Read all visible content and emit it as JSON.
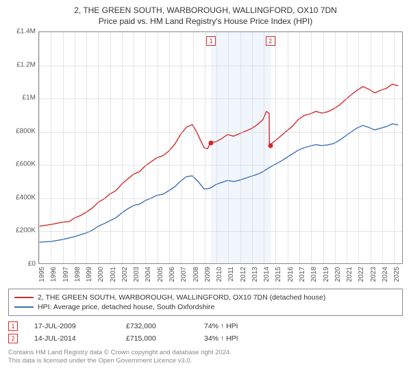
{
  "title_line1": "2, THE GREEN SOUTH, WARBOROUGH, WALLINGFORD, OX10 7DN",
  "title_line2": "Price paid vs. HM Land Registry's House Price Index (HPI)",
  "chart": {
    "type": "line",
    "background_color": "#ffffff",
    "grid_color": "#cccccc",
    "axis_color": "#888888",
    "ylim": [
      0,
      1400000
    ],
    "ytick_step": 200000,
    "yticks": [
      "£0",
      "£200K",
      "£400K",
      "£600K",
      "£800K",
      "£1M",
      "£1.2M",
      "£1.4M"
    ],
    "x_start_year": 1995,
    "x_end_year": 2025.8,
    "xticks": [
      1995,
      1996,
      1997,
      1998,
      1999,
      2000,
      2001,
      2002,
      2003,
      2004,
      2005,
      2006,
      2007,
      2008,
      2009,
      2010,
      2011,
      2012,
      2013,
      2014,
      2015,
      2016,
      2017,
      2018,
      2019,
      2020,
      2021,
      2022,
      2023,
      2024,
      2025
    ],
    "shade_band": {
      "start": 2009.55,
      "end": 2014.55,
      "color": "#e8f0fa"
    },
    "series": [
      {
        "name": "price_paid",
        "color": "#d62728",
        "line_width": 1.4,
        "points": [
          [
            1995,
            225000
          ],
          [
            1996,
            235000
          ],
          [
            1997,
            250000
          ],
          [
            1997.5,
            252000
          ],
          [
            1998,
            275000
          ],
          [
            1998.5,
            290000
          ],
          [
            1999,
            310000
          ],
          [
            1999.5,
            335000
          ],
          [
            2000,
            370000
          ],
          [
            2000.5,
            390000
          ],
          [
            2001,
            420000
          ],
          [
            2001.5,
            440000
          ],
          [
            2002,
            480000
          ],
          [
            2002.5,
            510000
          ],
          [
            2003,
            540000
          ],
          [
            2003.5,
            555000
          ],
          [
            2004,
            590000
          ],
          [
            2004.5,
            615000
          ],
          [
            2005,
            640000
          ],
          [
            2005.5,
            652000
          ],
          [
            2006,
            680000
          ],
          [
            2006.5,
            720000
          ],
          [
            2007,
            780000
          ],
          [
            2007.5,
            825000
          ],
          [
            2008,
            840000
          ],
          [
            2008.3,
            805000
          ],
          [
            2008.6,
            760000
          ],
          [
            2009,
            700000
          ],
          [
            2009.3,
            694000
          ],
          [
            2009.55,
            732000
          ],
          [
            2010,
            736000
          ],
          [
            2010.5,
            755000
          ],
          [
            2011,
            780000
          ],
          [
            2011.5,
            770000
          ],
          [
            2012,
            785000
          ],
          [
            2012.5,
            800000
          ],
          [
            2013,
            815000
          ],
          [
            2013.5,
            838000
          ],
          [
            2014,
            870000
          ],
          [
            2014.3,
            920000
          ],
          [
            2014.53,
            908000
          ],
          [
            2014.55,
            715000
          ],
          [
            2015,
            740000
          ],
          [
            2015.5,
            770000
          ],
          [
            2016,
            800000
          ],
          [
            2016.5,
            830000
          ],
          [
            2017,
            870000
          ],
          [
            2017.5,
            895000
          ],
          [
            2018,
            905000
          ],
          [
            2018.5,
            920000
          ],
          [
            2019,
            910000
          ],
          [
            2019.5,
            918000
          ],
          [
            2020,
            935000
          ],
          [
            2020.5,
            958000
          ],
          [
            2021,
            990000
          ],
          [
            2021.5,
            1020000
          ],
          [
            2022,
            1048000
          ],
          [
            2022.5,
            1070000
          ],
          [
            2023,
            1055000
          ],
          [
            2023.5,
            1032000
          ],
          [
            2024,
            1048000
          ],
          [
            2024.5,
            1060000
          ],
          [
            2025,
            1085000
          ],
          [
            2025.5,
            1075000
          ]
        ]
      },
      {
        "name": "hpi",
        "color": "#3b6fb6",
        "line_width": 1.4,
        "points": [
          [
            1995,
            128000
          ],
          [
            1996,
            132000
          ],
          [
            1997,
            145000
          ],
          [
            1998,
            162000
          ],
          [
            1999,
            185000
          ],
          [
            1999.5,
            200000
          ],
          [
            2000,
            225000
          ],
          [
            2000.5,
            240000
          ],
          [
            2001,
            258000
          ],
          [
            2001.5,
            275000
          ],
          [
            2002,
            305000
          ],
          [
            2002.5,
            330000
          ],
          [
            2003,
            350000
          ],
          [
            2003.5,
            358000
          ],
          [
            2004,
            380000
          ],
          [
            2004.5,
            395000
          ],
          [
            2005,
            412000
          ],
          [
            2005.5,
            418000
          ],
          [
            2006,
            440000
          ],
          [
            2006.5,
            463000
          ],
          [
            2007,
            498000
          ],
          [
            2007.5,
            525000
          ],
          [
            2008,
            530000
          ],
          [
            2008.5,
            495000
          ],
          [
            2009,
            450000
          ],
          [
            2009.5,
            455000
          ],
          [
            2010,
            477000
          ],
          [
            2010.5,
            490000
          ],
          [
            2011,
            502000
          ],
          [
            2011.5,
            495000
          ],
          [
            2012,
            503000
          ],
          [
            2012.5,
            515000
          ],
          [
            2013,
            527000
          ],
          [
            2013.5,
            538000
          ],
          [
            2014,
            555000
          ],
          [
            2014.5,
            578000
          ],
          [
            2015,
            598000
          ],
          [
            2015.5,
            617000
          ],
          [
            2016,
            640000
          ],
          [
            2016.5,
            662000
          ],
          [
            2017,
            685000
          ],
          [
            2017.5,
            700000
          ],
          [
            2018,
            710000
          ],
          [
            2018.5,
            719000
          ],
          [
            2019,
            713000
          ],
          [
            2019.5,
            717000
          ],
          [
            2020,
            725000
          ],
          [
            2020.5,
            745000
          ],
          [
            2021,
            770000
          ],
          [
            2021.5,
            795000
          ],
          [
            2022,
            820000
          ],
          [
            2022.5,
            835000
          ],
          [
            2023,
            823000
          ],
          [
            2023.5,
            808000
          ],
          [
            2024,
            818000
          ],
          [
            2024.5,
            828000
          ],
          [
            2025,
            845000
          ],
          [
            2025.5,
            838000
          ]
        ]
      }
    ],
    "transactions": [
      {
        "num": "1",
        "year": 2009.55,
        "price": 732000,
        "color": "#d62728"
      },
      {
        "num": "2",
        "year": 2014.55,
        "price": 715000,
        "color": "#d62728"
      }
    ]
  },
  "legend": {
    "items": [
      {
        "label": "2, THE GREEN SOUTH, WARBOROUGH, WALLINGFORD, OX10 7DN (detached house)",
        "color": "#d62728"
      },
      {
        "label": "HPI: Average price, detached house, South Oxfordshire",
        "color": "#3b6fb6"
      }
    ]
  },
  "tx_rows": [
    {
      "num": "1",
      "color": "#d62728",
      "date": "17-JUL-2009",
      "price": "£732,000",
      "pct": "74% ↑ HPI"
    },
    {
      "num": "2",
      "color": "#d62728",
      "date": "14-JUL-2014",
      "price": "£715,000",
      "pct": "34% ↑ HPI"
    }
  ],
  "footer_line1": "Contains HM Land Registry data © Crown copyright and database right 2024.",
  "footer_line2": "This data is licensed under the Open Government Licence v3.0."
}
